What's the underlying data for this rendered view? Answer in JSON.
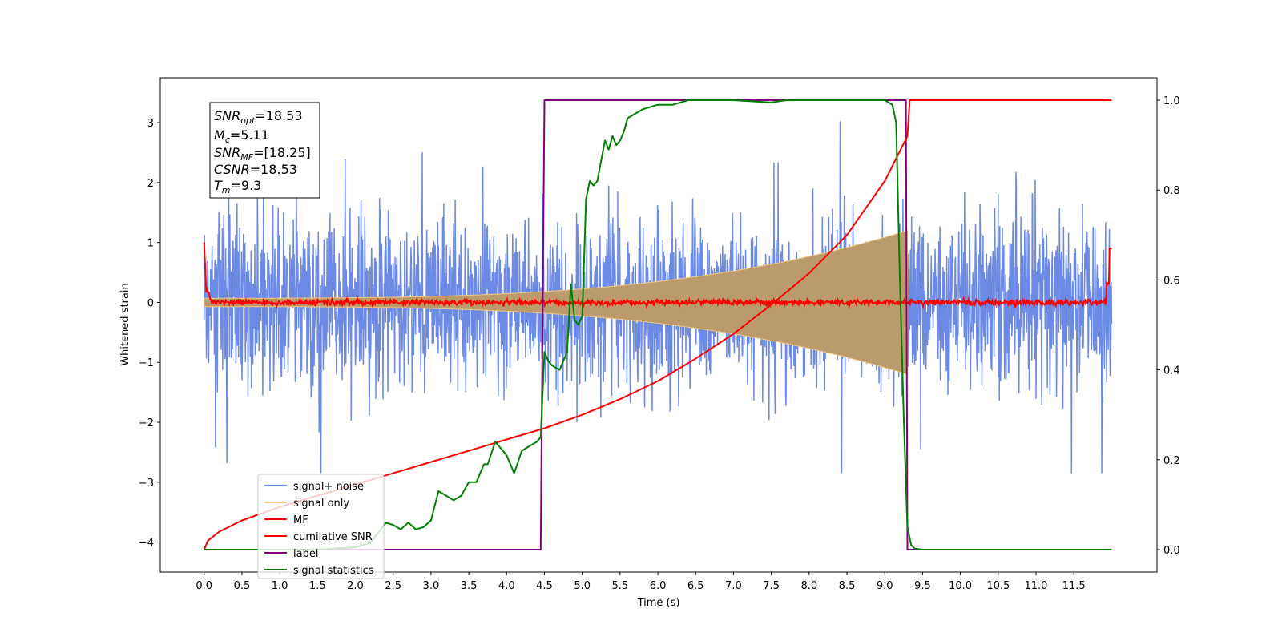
{
  "chart_data": {
    "type": "line",
    "xlabel": "Time (s)",
    "ylabel": "Whitened strain",
    "xlim": [
      -0.58,
      12.6
    ],
    "ylim": [
      -4.5,
      3.75
    ],
    "ylim_right": [
      -0.05,
      1.05
    ],
    "x_ticks": [
      "0.0",
      "0.5",
      "1.0",
      "1.5",
      "2.0",
      "2.5",
      "3.0",
      "3.5",
      "4.0",
      "4.5",
      "5.0",
      "5.5",
      "6.0",
      "6.5",
      "7.0",
      "7.5",
      "8.0",
      "8.5",
      "9.0",
      "9.5",
      "10.0",
      "10.5",
      "11.0",
      "11.5"
    ],
    "y_ticks_left": [
      "3",
      "2",
      "1",
      "0",
      "−1",
      "−2",
      "−3",
      "−4"
    ],
    "y_ticks_right": [
      "1.0",
      "0.8",
      "0.6",
      "0.4",
      "0.2",
      "0.0"
    ],
    "annotation": {
      "snr_opt": {
        "base": "SNR",
        "sub": "opt",
        "value": "=18.53"
      },
      "mc": {
        "base": "M",
        "sub": "c",
        "value": "=5.11"
      },
      "snr_mf": {
        "base": "SNR",
        "sub": "MF",
        "value": "=[18.25]"
      },
      "csnr": {
        "base": "CSNR",
        "sub": "",
        "value": "=18.53"
      },
      "tm": {
        "base": "T",
        "sub": "m",
        "value": "=9.3"
      }
    },
    "series": [
      {
        "name": "signal+ noise",
        "color": "#6b8ae6",
        "axis": "left",
        "description_values": {
          "x_range": [
            0,
            12
          ],
          "approx_amplitude_range": [
            -2.6,
            3.0
          ]
        }
      },
      {
        "name": "signal only",
        "color": "#f5c77e",
        "axis": "left",
        "chirp": {
          "start": 0,
          "end": 9.3,
          "amp_start": 0.07,
          "amp_end": 1.2
        }
      },
      {
        "name": "MF",
        "color": "#ff0000",
        "axis": "left",
        "x_range": [
          0,
          12
        ],
        "approx_level": 0.0
      },
      {
        "name": "cumilative SNR",
        "color": "#ff0000",
        "axis": "right",
        "x": [
          0,
          0.05,
          0.2,
          0.5,
          1.0,
          1.5,
          2.0,
          2.5,
          3.0,
          3.5,
          4.0,
          4.5,
          5.0,
          5.5,
          6.0,
          6.5,
          7.0,
          7.5,
          8.0,
          8.5,
          9.0,
          9.3,
          9.33,
          12.0
        ],
        "values": [
          0.0,
          0.02,
          0.04,
          0.065,
          0.095,
          0.12,
          0.145,
          0.17,
          0.195,
          0.22,
          0.245,
          0.27,
          0.3,
          0.335,
          0.375,
          0.425,
          0.48,
          0.545,
          0.615,
          0.7,
          0.82,
          0.92,
          1.0,
          1.0
        ]
      },
      {
        "name": "label",
        "color": "#800080",
        "axis": "right",
        "x": [
          0,
          4.45,
          4.5,
          9.28,
          9.3,
          12.0
        ],
        "values": [
          0,
          0,
          1,
          1,
          0,
          0
        ]
      },
      {
        "name": "signal statistics",
        "color": "#008000",
        "axis": "right",
        "x": [
          0,
          0.5,
          1.0,
          1.5,
          2.0,
          2.2,
          2.4,
          2.5,
          2.6,
          2.7,
          2.8,
          2.9,
          3.0,
          3.1,
          3.2,
          3.3,
          3.4,
          3.5,
          3.6,
          3.7,
          3.75,
          3.85,
          3.9,
          4.0,
          4.1,
          4.2,
          4.3,
          4.4,
          4.45,
          4.5,
          4.55,
          4.6,
          4.7,
          4.8,
          4.85,
          4.9,
          4.95,
          5.0,
          5.05,
          5.1,
          5.15,
          5.2,
          5.3,
          5.35,
          5.4,
          5.45,
          5.5,
          5.55,
          5.6,
          5.7,
          5.8,
          6.0,
          6.2,
          6.4,
          6.5,
          7.0,
          7.5,
          7.7,
          8.0,
          8.5,
          9.0,
          9.1,
          9.15,
          9.2,
          9.25,
          9.3,
          9.35,
          9.4,
          9.5,
          10.0,
          11.0,
          12.0
        ],
        "values": [
          0.0,
          0.0,
          0.0,
          0.0,
          0.005,
          0.015,
          0.06,
          0.055,
          0.045,
          0.06,
          0.045,
          0.05,
          0.065,
          0.13,
          0.12,
          0.11,
          0.12,
          0.15,
          0.15,
          0.19,
          0.19,
          0.24,
          0.23,
          0.21,
          0.17,
          0.22,
          0.23,
          0.24,
          0.25,
          0.44,
          0.42,
          0.41,
          0.4,
          0.44,
          0.59,
          0.51,
          0.5,
          0.52,
          0.78,
          0.82,
          0.81,
          0.82,
          0.91,
          0.89,
          0.92,
          0.9,
          0.91,
          0.93,
          0.96,
          0.97,
          0.98,
          0.99,
          0.99,
          1.0,
          1.0,
          1.0,
          0.995,
          1.0,
          1.0,
          1.0,
          1.0,
          0.99,
          0.95,
          0.6,
          0.3,
          0.05,
          0.01,
          0.002,
          0.0,
          0.0,
          0.0,
          0.0
        ]
      }
    ],
    "legend": {
      "placement": "lower-left",
      "entries": [
        "signal+ noise",
        "signal only",
        "MF",
        "cumilative SNR",
        "label",
        "signal statistics"
      ]
    },
    "grid": false
  }
}
